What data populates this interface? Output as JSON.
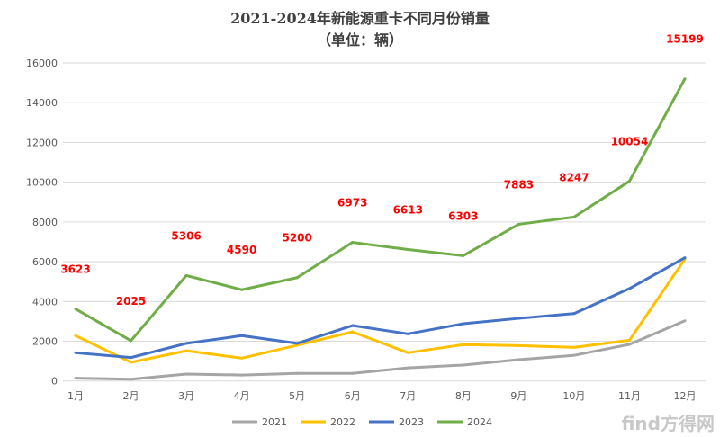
{
  "chart_data": {
    "type": "line",
    "title": "2021-2024年新能源重卡不同月份销量",
    "subtitle": "（单位：辆）",
    "categories": [
      "1月",
      "2月",
      "3月",
      "4月",
      "5月",
      "6月",
      "7月",
      "8月",
      "9月",
      "10月",
      "11月",
      "12月"
    ],
    "ylim": [
      0,
      16000
    ],
    "yticks": [
      0,
      2000,
      4000,
      6000,
      8000,
      10000,
      12000,
      14000,
      16000
    ],
    "grid": true,
    "legend": "bottom",
    "series": [
      {
        "name": "2021",
        "color": "#a5a5a5",
        "values": [
          140,
          90,
          350,
          300,
          380,
          380,
          660,
          800,
          1070,
          1290,
          1840,
          3030
        ],
        "labels": false
      },
      {
        "name": "2022",
        "color": "#ffc000",
        "values": [
          2280,
          940,
          1520,
          1150,
          1800,
          2470,
          1420,
          1830,
          1780,
          1690,
          2050,
          6130
        ],
        "labels": false
      },
      {
        "name": "2023",
        "color": "#4472c4",
        "values": [
          1420,
          1180,
          1890,
          2280,
          1890,
          2790,
          2370,
          2880,
          3150,
          3390,
          4650,
          6200
        ],
        "labels": false
      },
      {
        "name": "2024",
        "color": "#70ad47",
        "values": [
          3623,
          2025,
          5306,
          4590,
          5200,
          6973,
          6613,
          6303,
          7883,
          8247,
          10054,
          15199
        ],
        "labels": true
      }
    ],
    "data_label_color": "#ff0000"
  },
  "watermark": "find方得网"
}
